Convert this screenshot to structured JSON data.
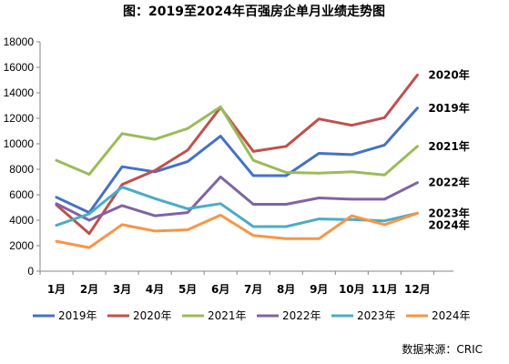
{
  "chart_data": {
    "type": "line",
    "title": "图：2019至2024年百强房企单月业绩走势图",
    "source": "数据来源：CRIC",
    "categories": [
      "1月",
      "2月",
      "3月",
      "4月",
      "5月",
      "6月",
      "7月",
      "8月",
      "9月",
      "10月",
      "11月",
      "12月"
    ],
    "ylim": [
      0,
      18000
    ],
    "yticks": [
      0,
      2000,
      4000,
      6000,
      8000,
      10000,
      12000,
      14000,
      16000,
      18000
    ],
    "grid": false,
    "legend": "bottom",
    "series": [
      {
        "name": "2019年",
        "color": "#4472C4",
        "end_label": "2019年",
        "values": [
          5800,
          4600,
          8200,
          7800,
          8600,
          10600,
          7500,
          7500,
          9250,
          9150,
          9900,
          12800
        ]
      },
      {
        "name": "2020年",
        "color": "#C0504D",
        "end_label": "2020年",
        "values": [
          5200,
          2950,
          6800,
          7900,
          9500,
          12850,
          9400,
          9800,
          11950,
          11450,
          12050,
          15400
        ]
      },
      {
        "name": "2021年",
        "color": "#9BBB59",
        "end_label": "2021年",
        "values": [
          8700,
          7600,
          10800,
          10350,
          11200,
          12900,
          8700,
          7750,
          7700,
          7800,
          7550,
          9800
        ]
      },
      {
        "name": "2022年",
        "color": "#8064A2",
        "end_label": "2022年",
        "values": [
          5300,
          4000,
          5150,
          4350,
          4600,
          7400,
          5250,
          5250,
          5750,
          5650,
          5650,
          6950
        ]
      },
      {
        "name": "2023年",
        "color": "#4BACC6",
        "end_label": "2023年",
        "values": [
          3600,
          4500,
          6600,
          5700,
          4900,
          5300,
          3500,
          3500,
          4100,
          4050,
          3950,
          4550
        ]
      },
      {
        "name": "2024年",
        "color": "#F79646",
        "end_label": "2024年",
        "values": [
          2350,
          1850,
          3650,
          3150,
          3250,
          4400,
          2800,
          2550,
          2550,
          4350,
          3650,
          4550
        ]
      }
    ]
  }
}
